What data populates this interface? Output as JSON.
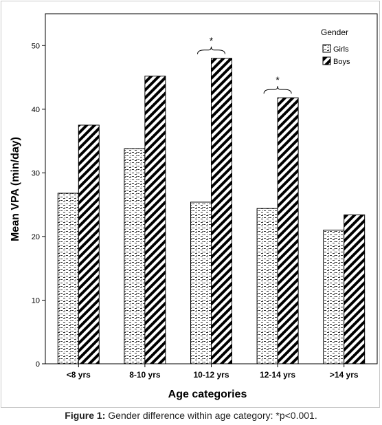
{
  "caption": {
    "label": "Figure 1:",
    "text": "Gender difference within age category: *p<0.001."
  },
  "chart_data": {
    "type": "bar",
    "title": "",
    "xlabel": "Age categories",
    "ylabel": "Mean VPA (min/day)",
    "ylim": [
      0,
      55
    ],
    "yticks": [
      0,
      10,
      20,
      30,
      40,
      50
    ],
    "grid": false,
    "categories": [
      "<8 yrs",
      "8-10 yrs",
      "10-12 yrs",
      "12-14 yrs",
      ">14 yrs"
    ],
    "series": [
      {
        "name": "Girls",
        "pattern": "dotted-dash",
        "values": [
          26.8,
          33.8,
          25.4,
          24.4,
          21.0
        ]
      },
      {
        "name": "Boys",
        "pattern": "diagonal-stripe",
        "values": [
          37.5,
          45.2,
          48.0,
          41.8,
          23.4
        ]
      }
    ],
    "legend": {
      "title": "Gender",
      "placement": "top-right"
    },
    "annotations": [
      {
        "category": "10-12 yrs",
        "text": "*",
        "type": "significance-bracket"
      },
      {
        "category": "12-14 yrs",
        "text": "*",
        "type": "significance-bracket"
      }
    ]
  }
}
